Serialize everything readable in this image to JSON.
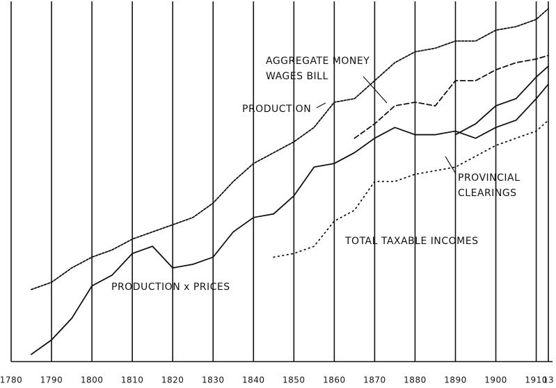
{
  "chart_data": {
    "type": "line",
    "x": [
      1785,
      1790,
      1795,
      1800,
      1805,
      1810,
      1815,
      1820,
      1825,
      1830,
      1835,
      1840,
      1845,
      1850,
      1855,
      1860,
      1865,
      1870,
      1875,
      1880,
      1885,
      1890,
      1895,
      1900,
      1905,
      1910,
      1913
    ],
    "xlim": [
      1780,
      1913
    ],
    "xticks": [
      1780,
      1790,
      1800,
      1810,
      1820,
      1830,
      1840,
      1850,
      1860,
      1870,
      1880,
      1890,
      1900,
      {
        "value": 1910,
        "label": "1910"
      },
      {
        "value": 1913,
        "label": "13"
      }
    ],
    "ylim": [
      0,
      100
    ],
    "grid": true,
    "series": [
      {
        "name": "PRODUCTION",
        "color": "#111111",
        "style": "dotted-solid",
        "values": [
          20,
          22,
          26,
          29,
          31,
          34,
          36,
          38,
          40,
          44,
          50,
          55,
          58,
          61,
          65,
          72,
          73,
          78,
          83,
          86,
          87,
          89,
          89,
          92,
          93,
          95,
          98
        ]
      },
      {
        "name": "AGGREGATE MONEY WAGES BILL",
        "color": "#111111",
        "style": "dashed",
        "values": [
          null,
          null,
          null,
          null,
          null,
          null,
          null,
          null,
          null,
          null,
          null,
          null,
          null,
          null,
          null,
          null,
          62,
          66,
          71,
          72,
          71,
          78,
          78,
          81,
          83,
          84,
          85
        ]
      },
      {
        "name": "PRODUCTION x PRICES",
        "color": "#111111",
        "style": "solid",
        "values": [
          2,
          6,
          12,
          21,
          24,
          30,
          32,
          26,
          27,
          29,
          36,
          40,
          41,
          46,
          54,
          55,
          58,
          62,
          65,
          63,
          63,
          64,
          62,
          65,
          67,
          73,
          77
        ]
      },
      {
        "name": "PROVINCIAL CLEARINGS",
        "color": "#111111",
        "style": "solid",
        "values": [
          null,
          null,
          null,
          null,
          null,
          null,
          null,
          null,
          null,
          null,
          null,
          null,
          null,
          null,
          null,
          null,
          null,
          null,
          null,
          null,
          null,
          63,
          66,
          71,
          73,
          79,
          82
        ]
      },
      {
        "name": "TOTAL TAXABLE INCOMES",
        "color": "#111111",
        "style": "dotted",
        "values": [
          null,
          null,
          null,
          null,
          null,
          null,
          null,
          null,
          null,
          null,
          null,
          null,
          29,
          30,
          32,
          39,
          42,
          50,
          50,
          52,
          53,
          54,
          57,
          60,
          62,
          64,
          67
        ]
      }
    ],
    "annotations": [
      "PRODUCTION",
      "AGGREGATE MONEY",
      "WAGES BILL",
      "PROVINCIAL",
      "CLEARINGS",
      "TOTAL TAXABLE INCOMES",
      "PRODUCTION x PRICES"
    ]
  }
}
